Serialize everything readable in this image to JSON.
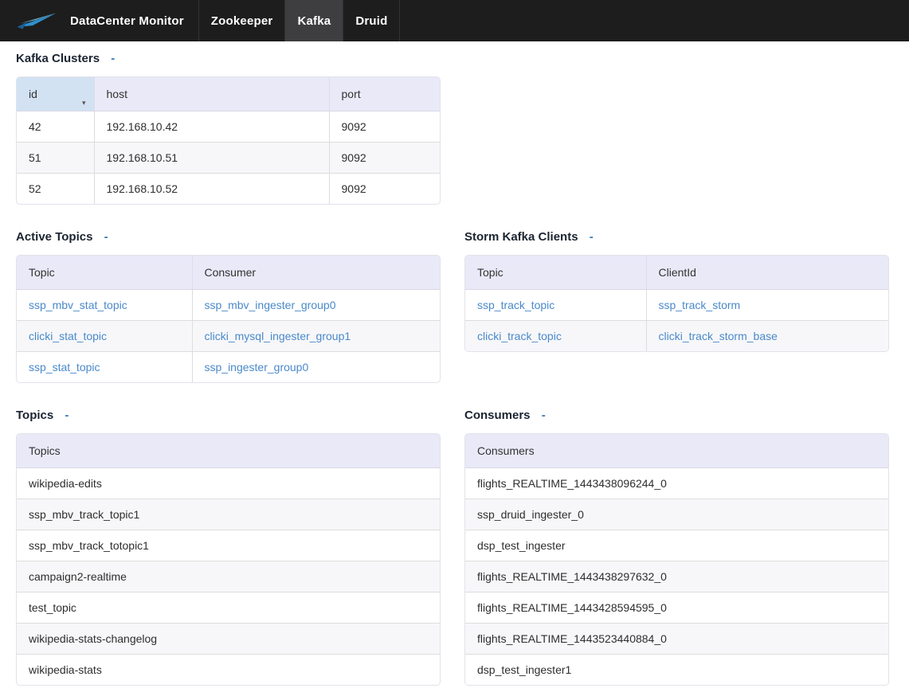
{
  "navbar": {
    "brand": "DataCenter Monitor",
    "tabs": [
      {
        "label": "Zookeeper",
        "active": false
      },
      {
        "label": "Kafka",
        "active": true
      },
      {
        "label": "Druid",
        "active": false
      }
    ]
  },
  "icons": {
    "logo": "bird-swoosh-logo",
    "collapse": "-",
    "sort_caret": "▾"
  },
  "colors": {
    "navbar_bg": "#1d1d1d",
    "active_tab_bg": "#3e3e41",
    "table_header_bg": "#e9e9f8",
    "sorted_header_bg": "#d2e2f3",
    "link": "#4a89ca",
    "title": "#1b2431",
    "toggle_blue": "#3a79b8"
  },
  "sections": {
    "kafka_clusters": {
      "title": "Kafka Clusters",
      "columns": [
        "id",
        "host",
        "port"
      ],
      "sorted_column": "id",
      "links": false,
      "rows": [
        [
          "42",
          "192.168.10.42",
          "9092"
        ],
        [
          "51",
          "192.168.10.51",
          "9092"
        ],
        [
          "52",
          "192.168.10.52",
          "9092"
        ]
      ]
    },
    "active_topics": {
      "title": "Active Topics",
      "columns": [
        "Topic",
        "Consumer"
      ],
      "links": true,
      "rows": [
        [
          "ssp_mbv_stat_topic",
          "ssp_mbv_ingester_group0"
        ],
        [
          "clicki_stat_topic",
          "clicki_mysql_ingester_group1"
        ],
        [
          "ssp_stat_topic",
          "ssp_ingester_group0"
        ]
      ]
    },
    "storm_kafka_clients": {
      "title": "Storm Kafka Clients",
      "columns": [
        "Topic",
        "ClientId"
      ],
      "links": true,
      "rows": [
        [
          "ssp_track_topic",
          "ssp_track_storm"
        ],
        [
          "clicki_track_topic",
          "clicki_track_storm_base"
        ]
      ]
    },
    "topics": {
      "title": "Topics",
      "columns": [
        "Topics"
      ],
      "links": false,
      "rows": [
        [
          "wikipedia-edits"
        ],
        [
          "ssp_mbv_track_topic1"
        ],
        [
          "ssp_mbv_track_totopic1"
        ],
        [
          "campaign2-realtime"
        ],
        [
          "test_topic"
        ],
        [
          "wikipedia-stats-changelog"
        ],
        [
          "wikipedia-stats"
        ]
      ]
    },
    "consumers": {
      "title": "Consumers",
      "columns": [
        "Consumers"
      ],
      "links": false,
      "rows": [
        [
          "flights_REALTIME_1443438096244_0"
        ],
        [
          "ssp_druid_ingester_0"
        ],
        [
          "dsp_test_ingester"
        ],
        [
          "flights_REALTIME_1443438297632_0"
        ],
        [
          "flights_REALTIME_1443428594595_0"
        ],
        [
          "flights_REALTIME_1443523440884_0"
        ],
        [
          "dsp_test_ingester1"
        ]
      ]
    }
  }
}
